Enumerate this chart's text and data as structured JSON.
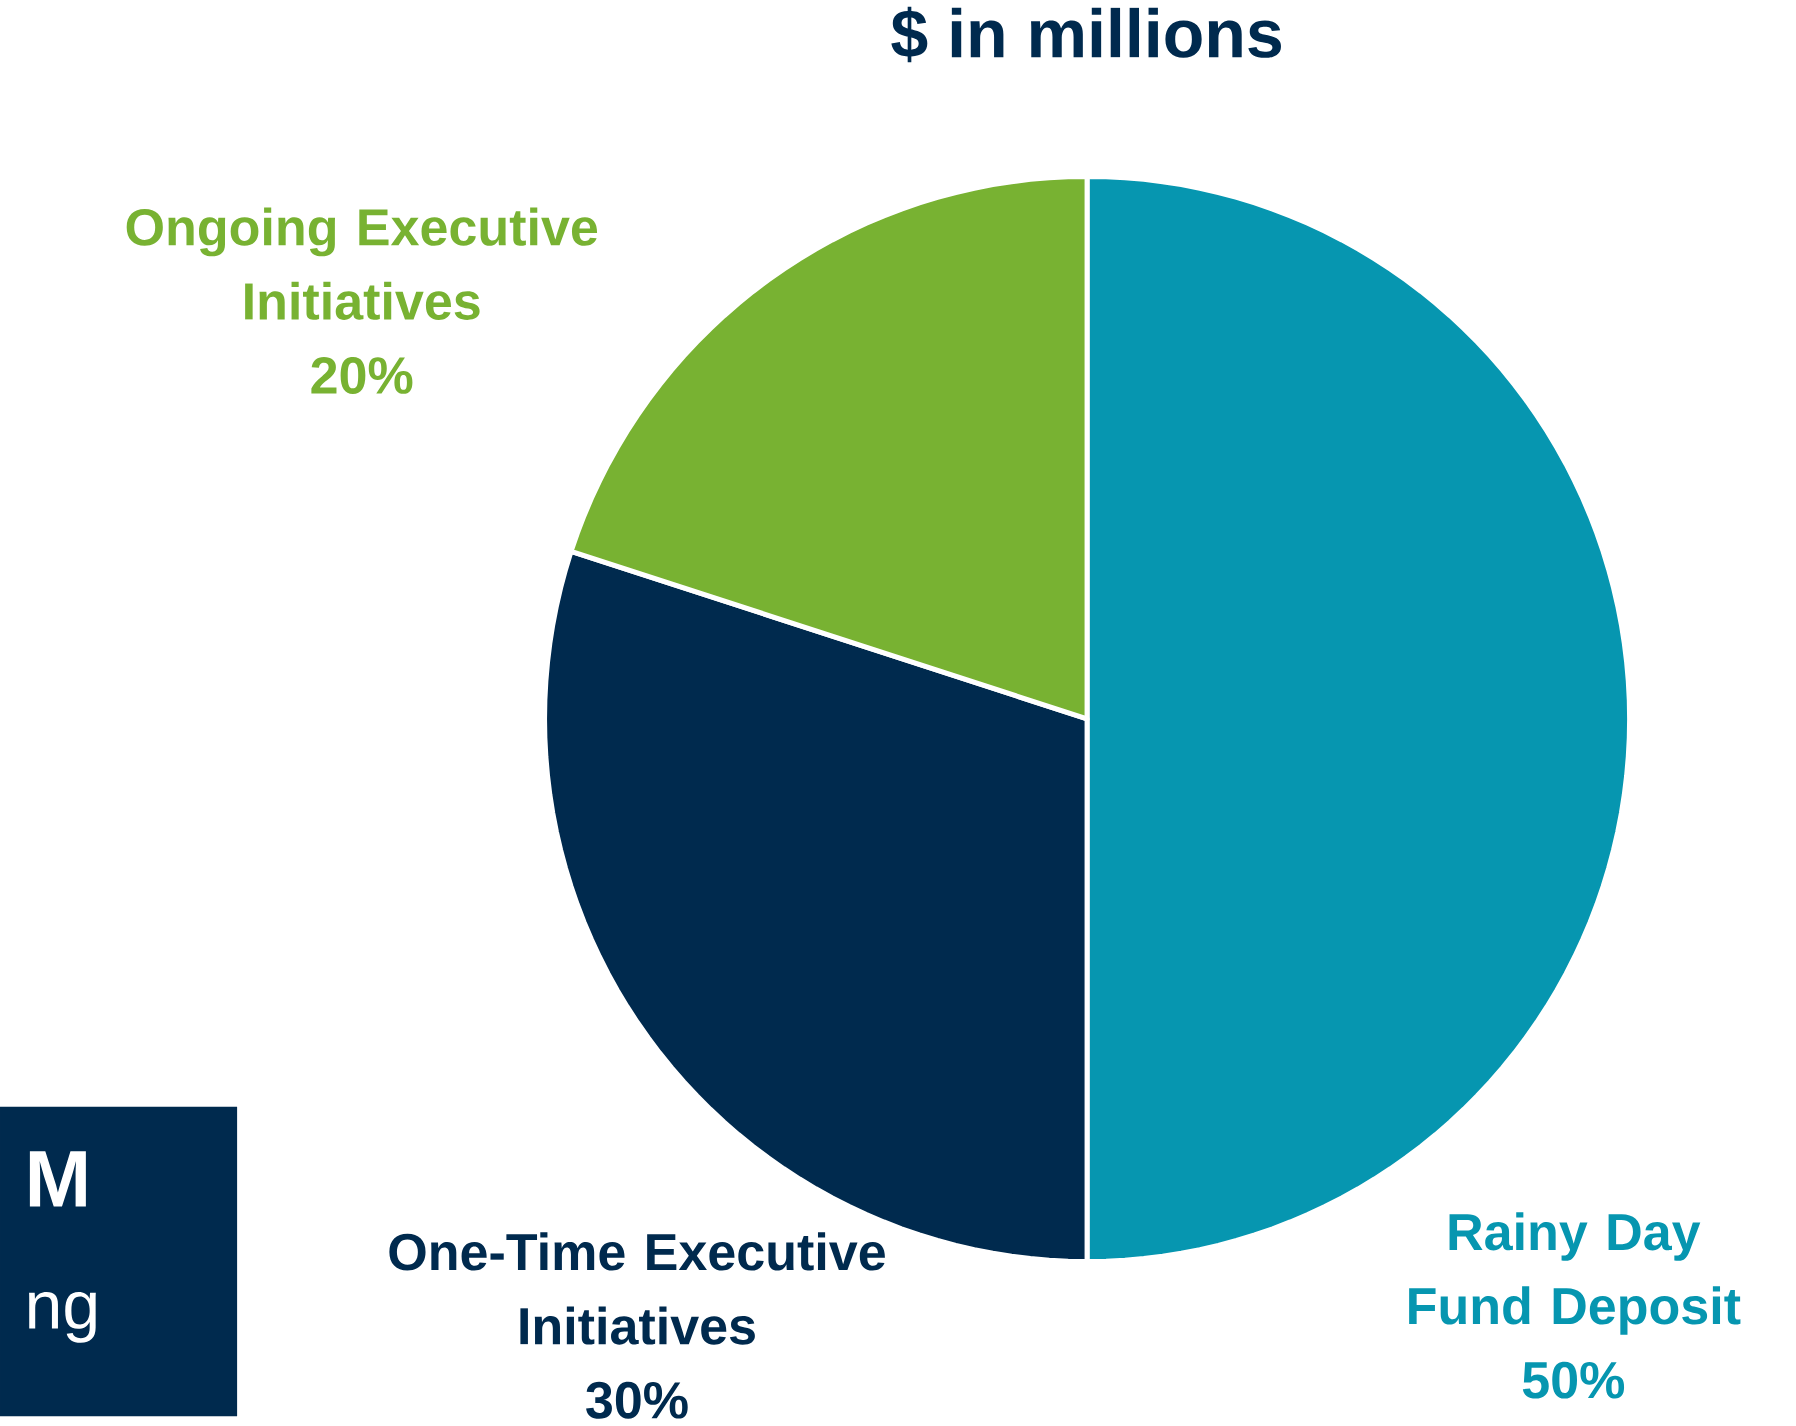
{
  "chart_data": {
    "type": "pie",
    "title": "$ in millions",
    "categories": [
      "Rainy Day Fund Deposit",
      "One-Time Executive Initiatives",
      "Ongoing Executive Initiatives"
    ],
    "values": [
      50,
      30,
      20
    ],
    "value_labels": [
      "50%",
      "30%",
      "20%"
    ],
    "colors": [
      "#0696b0",
      "#002a4e",
      "#78b232"
    ],
    "annotations": [
      "M",
      "ng"
    ]
  }
}
